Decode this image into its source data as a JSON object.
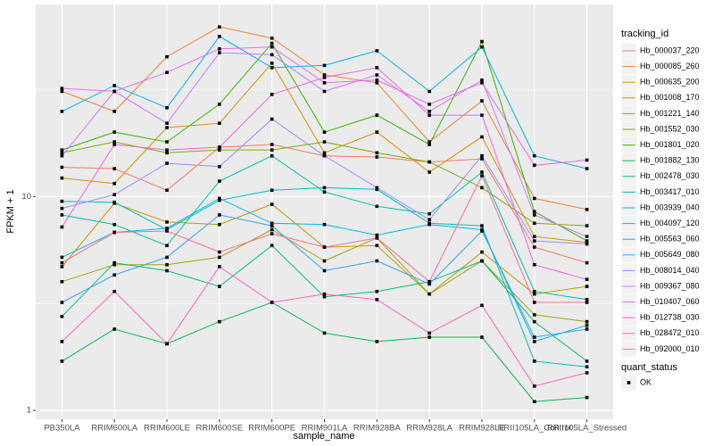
{
  "chart_data": {
    "type": "line",
    "x_label": "sample_name",
    "y_label": "FPKM + 1",
    "categories": [
      "PB350LA",
      "RRIM600LA",
      "RRIM600LE",
      "RRIM600SE",
      "RRIM600PE",
      "RRIM901LA",
      "RRIM928BA",
      "RRIM928LA",
      "RRIM928LE",
      "RRII105LA_Control",
      "RRII105LA_Stressed"
    ],
    "log_scale": true,
    "ylim": [
      0.91,
      79
    ],
    "yticks": [
      1,
      10
    ],
    "grid": true,
    "legend_title": "tracking_id",
    "legend_position": "right",
    "point_legend_title": "quant_status",
    "point_legend_label": "OK",
    "point_color": "#000000",
    "series": [
      {
        "name": "Hb_000037_220",
        "color": "#F8766D",
        "values": [
          13.7,
          13.5,
          10.7,
          17,
          17.5,
          15.5,
          15.3,
          14.5,
          15,
          5.8,
          4.9
        ]
      },
      {
        "name": "Hb_000085_260",
        "color": "#EA8331",
        "values": [
          31,
          25,
          45,
          62,
          55,
          37,
          34,
          18,
          28,
          9.8,
          8.7
        ]
      },
      {
        "name": "Hb_000635_200",
        "color": "#D89000",
        "values": [
          12.2,
          11.5,
          21,
          22,
          42,
          16,
          20,
          13,
          19,
          6.5,
          6.1
        ]
      },
      {
        "name": "Hb_001008_170",
        "color": "#C09B00",
        "values": [
          4.7,
          9.3,
          7.6,
          7.4,
          9.2,
          5.8,
          5.9,
          3.5,
          5.5,
          3.5,
          3.8
        ]
      },
      {
        "name": "Hb_001221_140",
        "color": "#A3A500",
        "values": [
          4,
          4.8,
          4.8,
          5.2,
          7,
          5,
          6.4,
          3.5,
          5,
          2.8,
          2.6
        ]
      },
      {
        "name": "Hb_001552_030",
        "color": "#7CAE00",
        "values": [
          16,
          18,
          16,
          16.5,
          16.5,
          18,
          16,
          14.5,
          11,
          7.5,
          7.3
        ]
      },
      {
        "name": "Hb_001801_020",
        "color": "#39B600",
        "values": [
          16.5,
          20,
          18,
          27,
          52,
          20,
          24,
          17.5,
          53,
          8.5,
          6.2
        ]
      },
      {
        "name": "Hb_001882_130",
        "color": "#00BB4E",
        "values": [
          1.7,
          2.4,
          2.05,
          2.6,
          3.2,
          2.3,
          2.1,
          2.2,
          2.2,
          1.1,
          1.15
        ]
      },
      {
        "name": "Hb_002478_030",
        "color": "#00BF7D",
        "values": [
          2.75,
          4.9,
          4.5,
          3.8,
          5.9,
          3.4,
          3.6,
          4,
          5,
          2.6,
          1.7
        ]
      },
      {
        "name": "Hb_003417_010",
        "color": "#00C1A3",
        "values": [
          8.2,
          7.4,
          5.9,
          11.8,
          15.5,
          10.5,
          9,
          8.3,
          13,
          3.6,
          3.3
        ]
      },
      {
        "name": "Hb_003939_040",
        "color": "#00BFC4",
        "values": [
          9.5,
          9.4,
          7,
          9.6,
          10.7,
          11,
          10.8,
          7.5,
          7.3,
          1.7,
          1.6
        ]
      },
      {
        "name": "Hb_004097_120",
        "color": "#00BAE0",
        "values": [
          5.2,
          6.8,
          7.1,
          9.8,
          7.5,
          7.4,
          6.6,
          7.4,
          7,
          2.1,
          2.5
        ]
      },
      {
        "name": "Hb_005563_060",
        "color": "#00B0F6",
        "values": [
          25,
          33,
          26,
          56,
          40,
          41,
          48,
          31,
          50,
          15.5,
          13.5
        ]
      },
      {
        "name": "Hb_005649_080",
        "color": "#35A2FF",
        "values": [
          3.2,
          4.3,
          5.2,
          8.2,
          7.3,
          4.5,
          5,
          3.9,
          6.9,
          2.2,
          2.4
        ]
      },
      {
        "name": "Hb_008014_040",
        "color": "#9590FF",
        "values": [
          8.8,
          10.2,
          14.3,
          13.8,
          23,
          15.5,
          11,
          7.8,
          15.5,
          6.2,
          6
        ]
      },
      {
        "name": "Hb_009367_080",
        "color": "#C77CFF",
        "values": [
          15.5,
          31,
          22,
          47,
          46,
          31,
          37,
          25,
          35,
          8.2,
          6.5
        ]
      },
      {
        "name": "Hb_010407_060",
        "color": "#E76BF3",
        "values": [
          32,
          31,
          38,
          49,
          50,
          34,
          35,
          27,
          34,
          14,
          14.8
        ]
      },
      {
        "name": "Hb_012738_030",
        "color": "#FA62DB",
        "values": [
          7.2,
          17.5,
          16.5,
          17,
          30,
          36,
          40,
          24,
          24,
          4.8,
          4.1
        ]
      },
      {
        "name": "Hb_028472_010",
        "color": "#FF62BC",
        "values": [
          2.1,
          3.6,
          2.05,
          4.7,
          3.2,
          3.5,
          3.3,
          2.3,
          3.1,
          1.3,
          1.5
        ]
      },
      {
        "name": "Hb_092000_010",
        "color": "#FF6C91",
        "values": [
          4.9,
          6.8,
          6.9,
          5.5,
          6.7,
          5.8,
          6.4,
          4,
          12.5,
          3.2,
          3.2
        ]
      }
    ]
  }
}
